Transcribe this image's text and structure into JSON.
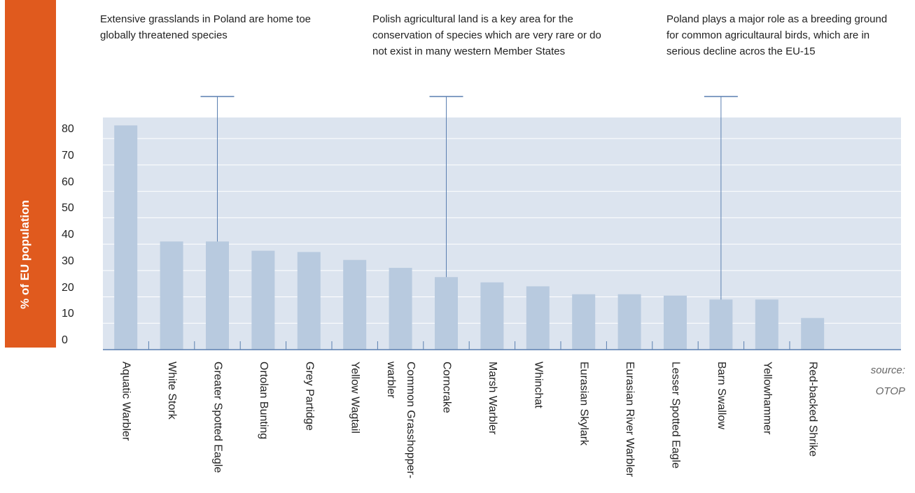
{
  "chart_data": {
    "type": "bar",
    "y_label": "% of EU population",
    "source": "source: OTOP",
    "categories": [
      "Aquatic Warbler",
      "White Stork",
      "Greater Spotted Eagle",
      "Ortolan Bunting",
      "Grey Partidge",
      "Yellow Wagtail",
      "Common Grasshopper-warbler",
      "Corncrake",
      "Marsh Warbler",
      "Whinchat",
      "Eurasian Skylark",
      "Eurasian River Warbler",
      "Lesser Spotted Eagle",
      "Barn Swallow",
      "Yellowhammer",
      "Red-backed Shrike"
    ],
    "values": [
      85,
      41,
      41,
      37.5,
      37,
      34,
      31,
      27.5,
      25.5,
      24,
      21,
      21,
      20.5,
      19,
      19,
      12
    ],
    "color": "#b8cadf",
    "ylim": [
      0,
      88
    ],
    "yticks": [
      0,
      10,
      20,
      30,
      40,
      50,
      60,
      70,
      80
    ],
    "grid": true,
    "annotations": [
      {
        "text": "Extensive grasslands in Poland are home toe globally threatened species",
        "category": "Greater Spotted Eagle"
      },
      {
        "text": "Polish agricultural land is a key area for the conservation of species which are very rare or do not exist in many western Member States",
        "category": "Corncrake"
      },
      {
        "text": "Poland plays a major role as a breeding ground for common agricultaural birds, which are in serious decline acros the EU-15",
        "category": "Barn Swallow"
      }
    ]
  }
}
